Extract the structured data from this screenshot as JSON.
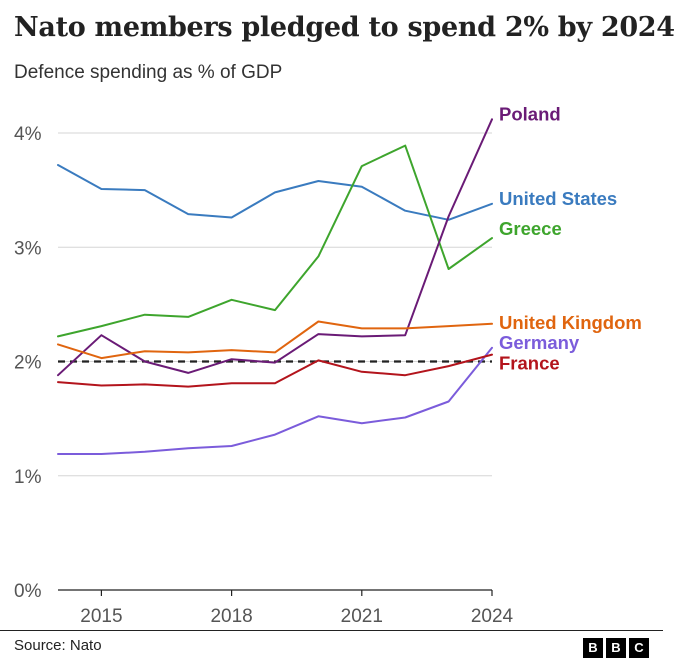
{
  "header": {
    "title": "Nato members pledged to spend 2% by 2024",
    "subtitle": "Defence spending as % of GDP"
  },
  "footer": {
    "source": "Source: Nato",
    "logo_letters": [
      "B",
      "B",
      "C"
    ]
  },
  "chart_data": {
    "type": "line",
    "title": "Nato members pledged to spend 2% by 2024",
    "subtitle": "Defence spending as % of GDP",
    "xlabel": "",
    "ylabel": "",
    "x": [
      2014,
      2015,
      2016,
      2017,
      2018,
      2019,
      2020,
      2021,
      2022,
      2023,
      2024
    ],
    "xlim": [
      2014,
      2024
    ],
    "ylim": [
      0,
      4.3
    ],
    "x_ticks": [
      2015,
      2018,
      2021,
      2024
    ],
    "x_tick_labels": [
      "2015",
      "2018",
      "2021",
      "2024"
    ],
    "y_ticks": [
      0,
      1,
      2,
      3,
      4
    ],
    "y_tick_labels": [
      "0%",
      "1%",
      "2%",
      "3%",
      "4%"
    ],
    "grid": true,
    "target_line": {
      "value": 2,
      "style": "dashed",
      "color": "#222222"
    },
    "series": [
      {
        "name": "United States",
        "color": "#3a7bbf",
        "values": [
          3.72,
          3.51,
          3.5,
          3.29,
          3.26,
          3.48,
          3.58,
          3.53,
          3.32,
          3.24,
          3.38
        ]
      },
      {
        "name": "Greece",
        "color": "#3ea52d",
        "values": [
          2.22,
          2.31,
          2.41,
          2.39,
          2.54,
          2.45,
          2.92,
          3.71,
          3.89,
          2.81,
          3.08
        ]
      },
      {
        "name": "Poland",
        "color": "#6a1b76",
        "values": [
          1.88,
          2.23,
          2.0,
          1.9,
          2.02,
          1.99,
          2.24,
          2.22,
          2.23,
          3.27,
          4.12
        ]
      },
      {
        "name": "United Kingdom",
        "color": "#e0650f",
        "values": [
          2.15,
          2.03,
          2.09,
          2.08,
          2.1,
          2.08,
          2.35,
          2.29,
          2.29,
          2.31,
          2.33
        ]
      },
      {
        "name": "Germany",
        "color": "#7b5cdb",
        "values": [
          1.19,
          1.19,
          1.21,
          1.24,
          1.26,
          1.36,
          1.52,
          1.46,
          1.51,
          1.65,
          2.12
        ]
      },
      {
        "name": "France",
        "color": "#b3141c",
        "values": [
          1.82,
          1.79,
          1.8,
          1.78,
          1.81,
          1.81,
          2.01,
          1.91,
          1.88,
          1.96,
          2.06
        ]
      }
    ],
    "labels": [
      {
        "text": "Poland",
        "series": "Poland"
      },
      {
        "text": "United States",
        "series": "United States"
      },
      {
        "text": "Greece",
        "series": "Greece"
      },
      {
        "text": "United Kingdom",
        "series": "United Kingdom"
      },
      {
        "text": "Germany",
        "series": "Germany"
      },
      {
        "text": "France",
        "series": "France"
      }
    ]
  }
}
